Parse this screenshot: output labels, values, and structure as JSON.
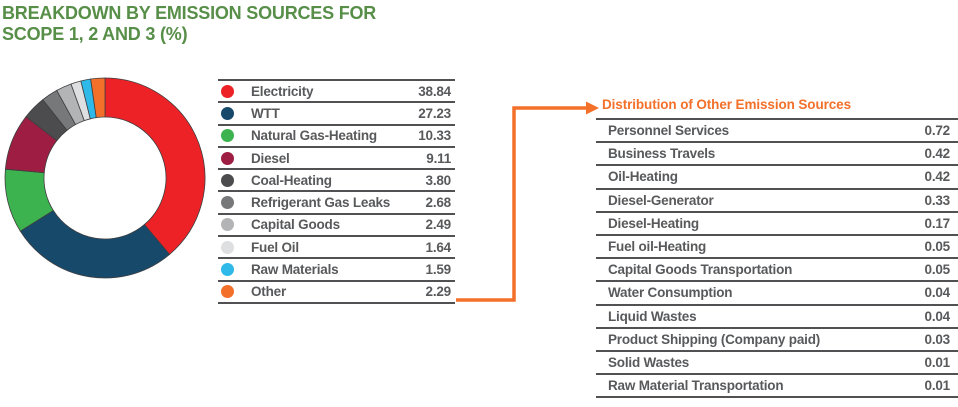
{
  "header": {
    "title_line1": "BREAKDOWN BY EMISSION SOURCES FOR",
    "title_line2": "SCOPE 1, 2 AND 3 (%)"
  },
  "colors": {
    "title_green": "#578E48",
    "text_gray": "#58595B",
    "separator": "#515153",
    "accent_orange": "#F2702A",
    "segment_outline": "#3E3E40",
    "background": "#FFFFFF"
  },
  "chart_data": {
    "type": "pie",
    "variant": "donut",
    "title": "Breakdown by emission sources for Scope 1, 2 and 3 (%)",
    "unit": "%",
    "categories": [
      "Electricity",
      "WTT",
      "Natural Gas-Heating",
      "Diesel",
      "Coal-Heating",
      "Refrigerant Gas Leaks",
      "Capital Goods",
      "Fuel Oil",
      "Raw Materials",
      "Other"
    ],
    "values": [
      38.84,
      27.23,
      10.33,
      9.11,
      3.8,
      2.68,
      2.49,
      1.64,
      1.59,
      2.29
    ],
    "display_values": [
      "38.84",
      "27.23",
      "10.33",
      "9.11",
      "3.80",
      "2.68",
      "2.49",
      "1.64",
      "1.59",
      "2.29"
    ],
    "colors": [
      "#EC2227",
      "#17496B",
      "#3CB34E",
      "#9E1E43",
      "#4C4C4E",
      "#77787A",
      "#B2B4B6",
      "#DEDFE0",
      "#2FB9E9",
      "#F2702A"
    ],
    "start_angle_deg": 0,
    "direction": "clockwise",
    "inner_radius_ratio": 0.61,
    "legend_position": "right",
    "total": 100.0
  },
  "breakout_table": {
    "title": "Distribution of Other Emission Sources",
    "linked_category": "Other",
    "rows": [
      {
        "label": "Personnel Services",
        "value": "0.72"
      },
      {
        "label": "Business Travels",
        "value": "0.42"
      },
      {
        "label": "Oil-Heating",
        "value": "0.42"
      },
      {
        "label": "Diesel-Generator",
        "value": "0.33"
      },
      {
        "label": "Diesel-Heating",
        "value": "0.17"
      },
      {
        "label": "Fuel oil-Heating",
        "value": "0.05"
      },
      {
        "label": "Capital Goods Transportation",
        "value": "0.05"
      },
      {
        "label": "Water Consumption",
        "value": "0.04"
      },
      {
        "label": "Liquid Wastes",
        "value": "0.04"
      },
      {
        "label": "Product Shipping (Company paid)",
        "value": "0.03"
      },
      {
        "label": "Solid Wastes",
        "value": "0.01"
      },
      {
        "label": "Raw Material Transportation",
        "value": "0.01"
      }
    ]
  }
}
